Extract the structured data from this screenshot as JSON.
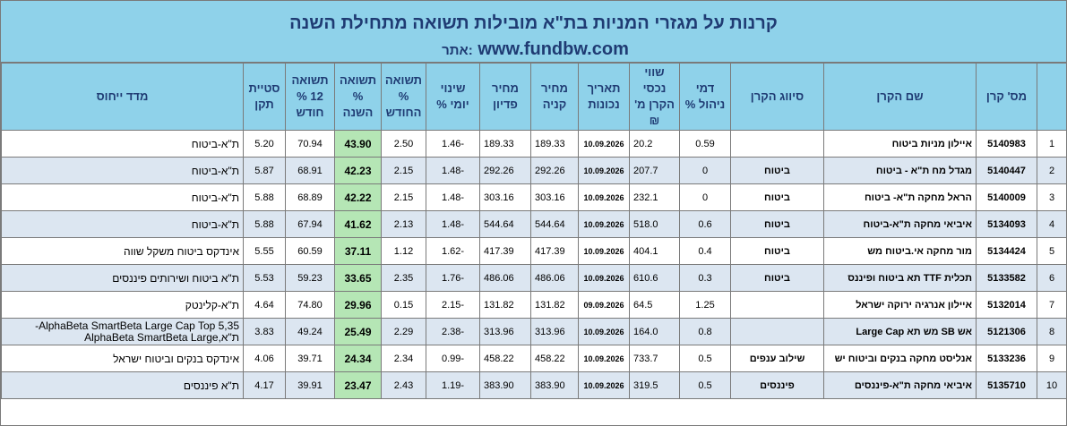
{
  "header": {
    "title": "קרנות על מגזרי המניות בת\"א מובילות תשואה מתחילת השנה",
    "site_label": "אתר:",
    "site": "www.fundbw.com"
  },
  "columns": {
    "idx": "",
    "fund_id": "מס' קרן",
    "name": "שם הקרן",
    "class": "סיווג הקרן",
    "fee": "דמי ניהול %",
    "assets": "שווי נכסי הקרן מ' ₪",
    "date": "תאריך נכונות",
    "buy": "מחיר קניה",
    "redeem": "מחיר פדיון",
    "daily": "שינוי יומי %",
    "month": "תשואה % החודש",
    "ytd": "תשואה % השנה",
    "m12": "תשואה 12 % חודש",
    "std": "סטיית תקן",
    "benchmark": "מדד ייחוס"
  },
  "rows": [
    {
      "idx": "1",
      "fund_id": "5140983",
      "name": "איילון מניות ביטוח",
      "class": "",
      "fee": "0.59",
      "assets": "20.2",
      "date": "10.09.2026",
      "buy": "189.33",
      "redeem": "189.33",
      "daily": "-1.46",
      "month": "2.50",
      "ytd": "43.90",
      "m12": "70.94",
      "std": "5.20",
      "benchmark": "ת\"א-ביטוח"
    },
    {
      "idx": "2",
      "fund_id": "5140447",
      "name": "מגדל מח ת\"א - ביטוח",
      "class": "ביטוח",
      "fee": "0",
      "assets": "207.7",
      "date": "10.09.2026",
      "buy": "292.26",
      "redeem": "292.26",
      "daily": "-1.48",
      "month": "2.15",
      "ytd": "42.23",
      "m12": "68.91",
      "std": "5.87",
      "benchmark": "ת\"א-ביטוח"
    },
    {
      "idx": "3",
      "fund_id": "5140009",
      "name": "הראל מחקה ת\"א- ביטוח",
      "class": "ביטוח",
      "fee": "0",
      "assets": "232.1",
      "date": "10.09.2026",
      "buy": "303.16",
      "redeem": "303.16",
      "daily": "-1.48",
      "month": "2.15",
      "ytd": "42.22",
      "m12": "68.89",
      "std": "5.88",
      "benchmark": "ת\"א-ביטוח"
    },
    {
      "idx": "4",
      "fund_id": "5134093",
      "name": "איביאי מחקה ת\"א-ביטוח",
      "class": "ביטוח",
      "fee": "0.6",
      "assets": "518.0",
      "date": "10.09.2026",
      "buy": "544.64",
      "redeem": "544.64",
      "daily": "-1.48",
      "month": "2.13",
      "ytd": "41.62",
      "m12": "67.94",
      "std": "5.88",
      "benchmark": "ת\"א-ביטוח"
    },
    {
      "idx": "5",
      "fund_id": "5134424",
      "name": "מור מחקה אי.ביטוח מש",
      "class": "ביטוח",
      "fee": "0.4",
      "assets": "404.1",
      "date": "10.09.2026",
      "buy": "417.39",
      "redeem": "417.39",
      "daily": "-1.62",
      "month": "1.12",
      "ytd": "37.11",
      "m12": "60.59",
      "std": "5.55",
      "benchmark": "אינדקס ביטוח משקל שווה"
    },
    {
      "idx": "6",
      "fund_id": "5133582",
      "name": "תכלית TTF תא ביטוח ופיננס",
      "class": "ביטוח",
      "fee": "0.3",
      "assets": "610.6",
      "date": "10.09.2026",
      "buy": "486.06",
      "redeem": "486.06",
      "daily": "-1.76",
      "month": "2.35",
      "ytd": "33.65",
      "m12": "59.23",
      "std": "5.53",
      "benchmark": "ת\"א ביטוח ושירותים פיננסים"
    },
    {
      "idx": "7",
      "fund_id": "5132014",
      "name": "איילון אנרגיה ירוקה ישראל",
      "class": "",
      "fee": "1.25",
      "assets": "64.5",
      "date": "09.09.2026",
      "buy": "131.82",
      "redeem": "131.82",
      "daily": "-2.15",
      "month": "0.15",
      "ytd": "29.96",
      "m12": "74.80",
      "std": "4.64",
      "benchmark": "ת\"א-קלינטק"
    },
    {
      "idx": "8",
      "fund_id": "5121306",
      "name": "אש SB מש תא Large Cap",
      "class": "",
      "fee": "0.8",
      "assets": "164.0",
      "date": "10.09.2026",
      "buy": "313.96",
      "redeem": "313.96",
      "daily": "-2.38",
      "month": "2.29",
      "ytd": "25.49",
      "m12": "49.24",
      "std": "3.83",
      "benchmark": "AlphaBeta SmartBeta Large Cap Top 5,35-ת\"א,AlphaBeta SmartBeta Large"
    },
    {
      "idx": "9",
      "fund_id": "5133236",
      "name": "אנליסט מחקה בנקים וביטוח יש",
      "class": "שילוב ענפים",
      "fee": "0.5",
      "assets": "733.7",
      "date": "10.09.2026",
      "buy": "458.22",
      "redeem": "458.22",
      "daily": "-0.99",
      "month": "2.34",
      "ytd": "24.34",
      "m12": "39.71",
      "std": "4.06",
      "benchmark": "אינדקס בנקים וביטוח ישראל"
    },
    {
      "idx": "10",
      "fund_id": "5135710",
      "name": "איביאי מחקה ת\"א-פיננסים",
      "class": "פיננסים",
      "fee": "0.5",
      "assets": "319.5",
      "date": "10.09.2026",
      "buy": "383.90",
      "redeem": "383.90",
      "daily": "-1.19",
      "month": "2.43",
      "ytd": "23.47",
      "m12": "39.91",
      "std": "4.17",
      "benchmark": "ת\"א פיננסים"
    }
  ]
}
